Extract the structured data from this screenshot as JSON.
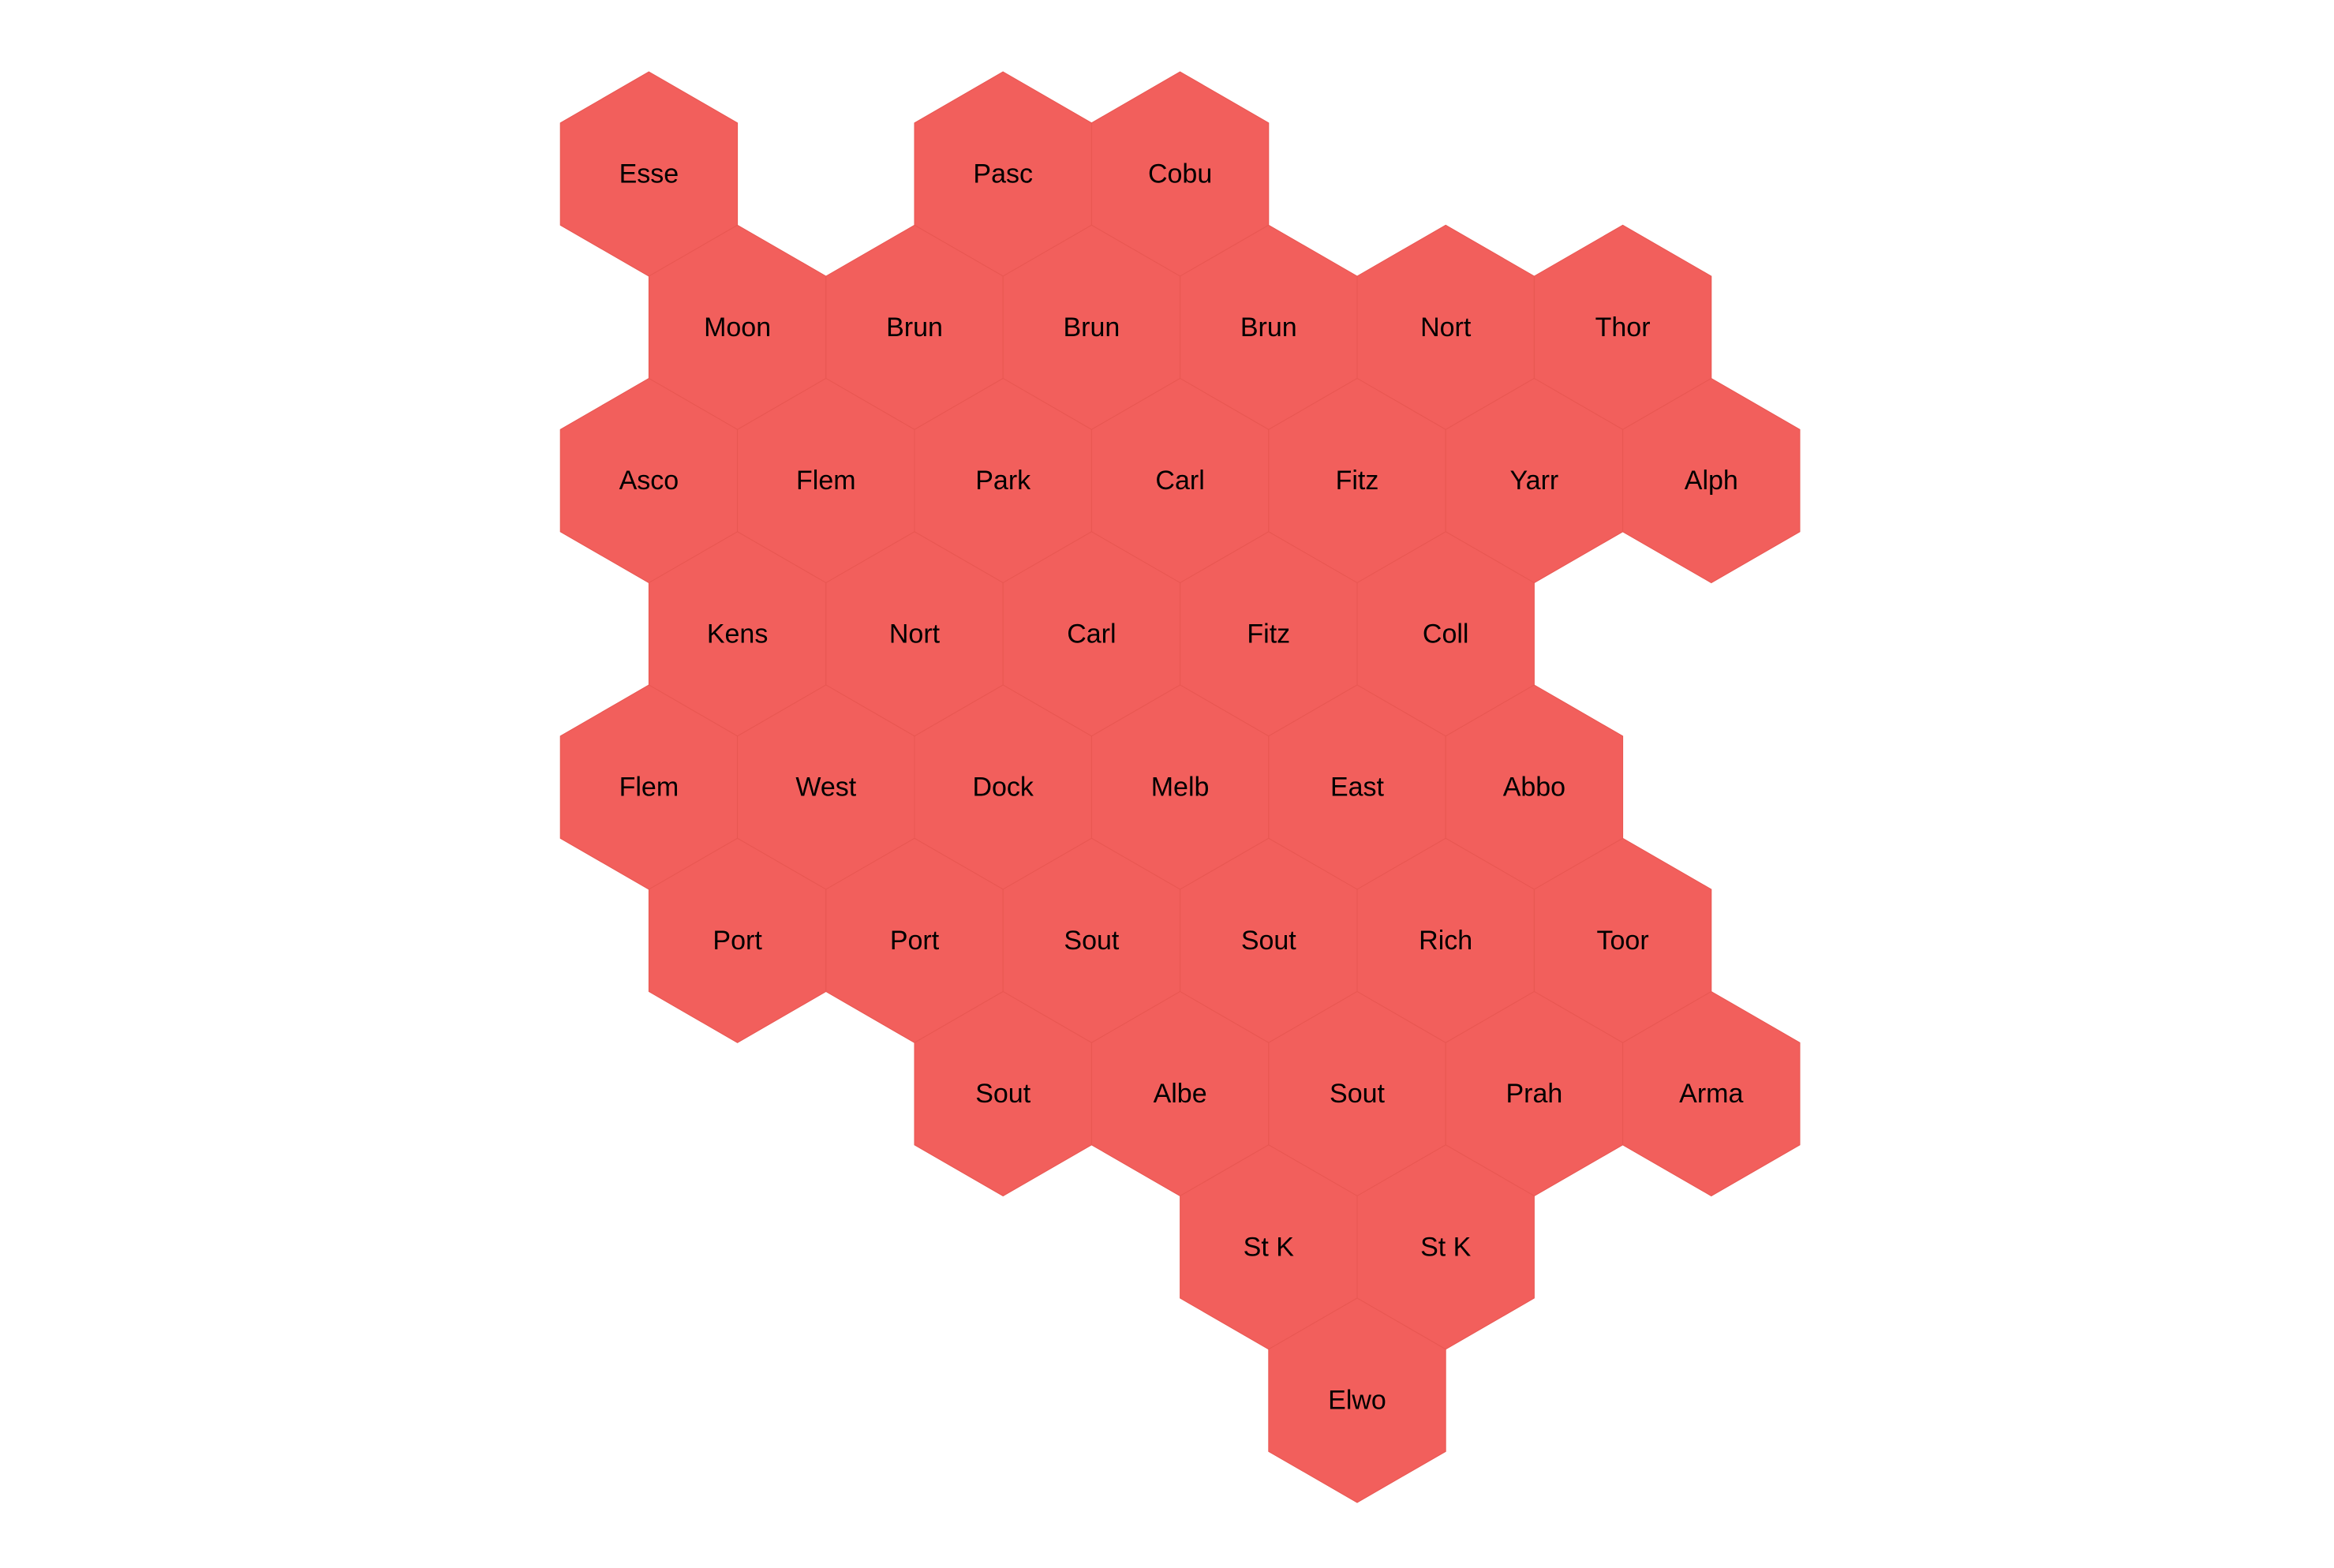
{
  "colors": {
    "hex_fill": "#f25f5c",
    "label": "#000000",
    "background": "#ffffff"
  },
  "hexes": [
    {
      "label": "Esse",
      "row": 0,
      "col": 0
    },
    {
      "label": "Pasc",
      "row": 0,
      "col": 2
    },
    {
      "label": "Cobu",
      "row": 0,
      "col": 3
    },
    {
      "label": "Moon",
      "row": 1,
      "col": 0
    },
    {
      "label": "Brun",
      "row": 1,
      "col": 1
    },
    {
      "label": "Brun",
      "row": 1,
      "col": 2
    },
    {
      "label": "Brun",
      "row": 1,
      "col": 3
    },
    {
      "label": "Nort",
      "row": 1,
      "col": 4
    },
    {
      "label": "Thor",
      "row": 1,
      "col": 5
    },
    {
      "label": "Asco",
      "row": 2,
      "col": 0
    },
    {
      "label": "Flem",
      "row": 2,
      "col": 1
    },
    {
      "label": "Park",
      "row": 2,
      "col": 2
    },
    {
      "label": "Carl",
      "row": 2,
      "col": 3
    },
    {
      "label": "Fitz",
      "row": 2,
      "col": 4
    },
    {
      "label": "Yarr",
      "row": 2,
      "col": 5
    },
    {
      "label": "Alph",
      "row": 2,
      "col": 6
    },
    {
      "label": "Kens",
      "row": 3,
      "col": 0
    },
    {
      "label": "Nort",
      "row": 3,
      "col": 1
    },
    {
      "label": "Carl",
      "row": 3,
      "col": 2
    },
    {
      "label": "Fitz",
      "row": 3,
      "col": 3
    },
    {
      "label": "Coll",
      "row": 3,
      "col": 4
    },
    {
      "label": "Flem",
      "row": 4,
      "col": 0
    },
    {
      "label": "West",
      "row": 4,
      "col": 1
    },
    {
      "label": "Dock",
      "row": 4,
      "col": 2
    },
    {
      "label": "Melb",
      "row": 4,
      "col": 3
    },
    {
      "label": "East",
      "row": 4,
      "col": 4
    },
    {
      "label": "Abbo",
      "row": 4,
      "col": 5
    },
    {
      "label": "Port",
      "row": 5,
      "col": 0
    },
    {
      "label": "Port",
      "row": 5,
      "col": 1
    },
    {
      "label": "Sout",
      "row": 5,
      "col": 2
    },
    {
      "label": "Sout",
      "row": 5,
      "col": 3
    },
    {
      "label": "Rich",
      "row": 5,
      "col": 4
    },
    {
      "label": "Toor",
      "row": 5,
      "col": 5
    },
    {
      "label": "Sout",
      "row": 6,
      "col": 2
    },
    {
      "label": "Albe",
      "row": 6,
      "col": 3
    },
    {
      "label": "Sout",
      "row": 6,
      "col": 4
    },
    {
      "label": "Prah",
      "row": 6,
      "col": 5
    },
    {
      "label": "Arma",
      "row": 6,
      "col": 6
    },
    {
      "label": "St K",
      "row": 7,
      "col": 3
    },
    {
      "label": "St K",
      "row": 7,
      "col": 4
    },
    {
      "label": "Elwo",
      "row": 8,
      "col": 4
    }
  ]
}
